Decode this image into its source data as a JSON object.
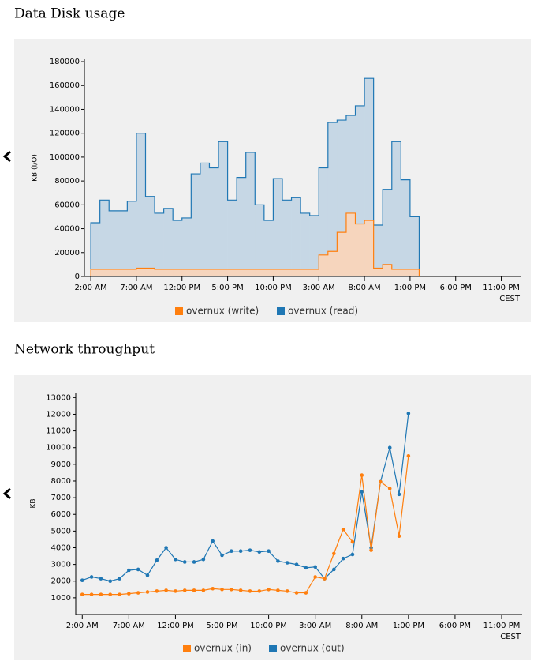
{
  "chart_data": [
    {
      "type": "step-area",
      "title": "Data Disk usage",
      "ylabel": "KB (I/O)",
      "xlabel": "CEST",
      "x": [
        0,
        1,
        2,
        3,
        4,
        5,
        6,
        7,
        8,
        9,
        10,
        11,
        12,
        13,
        14,
        15,
        16,
        17,
        18,
        19,
        20,
        21,
        22,
        23,
        24,
        25,
        26,
        27,
        28,
        29,
        30,
        31,
        32,
        33,
        34,
        35
      ],
      "xlim": [
        -0.7,
        47.2
      ],
      "xticks": [
        {
          "value": 0,
          "label": "2:00 AM"
        },
        {
          "value": 5,
          "label": "7:00 AM"
        },
        {
          "value": 10,
          "label": "12:00 PM"
        },
        {
          "value": 15,
          "label": "5:00 PM"
        },
        {
          "value": 20,
          "label": "10:00 PM"
        },
        {
          "value": 25,
          "label": "3:00 AM"
        },
        {
          "value": 30,
          "label": "8:00 AM"
        },
        {
          "value": 35,
          "label": "1:00 PM"
        },
        {
          "value": 40,
          "label": "6:00 PM"
        },
        {
          "value": 45,
          "label": "11:00 PM"
        }
      ],
      "ylim": [
        0,
        182000
      ],
      "yticks": [
        0,
        20000,
        40000,
        60000,
        80000,
        100000,
        120000,
        140000,
        160000,
        180000
      ],
      "series": [
        {
          "name": "overnux (read)",
          "color": "#1f77b4",
          "fill": "#c6d7e5",
          "values": [
            45000,
            64000,
            55000,
            55000,
            63000,
            120000,
            67000,
            53000,
            57000,
            47000,
            49000,
            86000,
            95000,
            91000,
            113000,
            64000,
            83000,
            104000,
            60000,
            47000,
            82000,
            64000,
            66000,
            53000,
            51000,
            91000,
            129000,
            131000,
            135000,
            143000,
            166000,
            43000,
            73000,
            113000,
            81000,
            50000
          ]
        },
        {
          "name": "overnux (write)",
          "color": "#ff7f0e",
          "fill": "#f6d5bd",
          "values": [
            6000,
            6000,
            6000,
            6000,
            6000,
            7000,
            7000,
            6000,
            6000,
            6000,
            6000,
            6000,
            6000,
            6000,
            6000,
            6000,
            6000,
            6000,
            6000,
            6000,
            6000,
            6000,
            6000,
            6000,
            6000,
            18000,
            21000,
            37000,
            53000,
            44000,
            47000,
            7000,
            10000,
            6000,
            6000,
            6000
          ]
        }
      ],
      "legend_order": [
        "overnux (write)",
        "overnux (read)"
      ]
    },
    {
      "type": "line",
      "title": "Network throughput",
      "ylabel": "KB",
      "xlabel": "CEST",
      "x": [
        0,
        1,
        2,
        3,
        4,
        5,
        6,
        7,
        8,
        9,
        10,
        11,
        12,
        13,
        14,
        15,
        16,
        17,
        18,
        19,
        20,
        21,
        22,
        23,
        24,
        25,
        26,
        27,
        28,
        29,
        30,
        31,
        32,
        33,
        34,
        35
      ],
      "xlim": [
        -0.7,
        47.2
      ],
      "xticks": [
        {
          "value": 0,
          "label": "2:00 AM"
        },
        {
          "value": 5,
          "label": "7:00 AM"
        },
        {
          "value": 10,
          "label": "12:00 PM"
        },
        {
          "value": 15,
          "label": "5:00 PM"
        },
        {
          "value": 20,
          "label": "10:00 PM"
        },
        {
          "value": 25,
          "label": "3:00 AM"
        },
        {
          "value": 30,
          "label": "8:00 AM"
        },
        {
          "value": 35,
          "label": "1:00 PM"
        },
        {
          "value": 40,
          "label": "6:00 PM"
        },
        {
          "value": 45,
          "label": "11:00 PM"
        }
      ],
      "ylim": [
        0,
        13300
      ],
      "yticks": [
        1000,
        2000,
        3000,
        4000,
        5000,
        6000,
        7000,
        8000,
        9000,
        10000,
        11000,
        12000,
        13000
      ],
      "series": [
        {
          "name": "overnux (out)",
          "color": "#1f77b4",
          "values": [
            2050,
            2250,
            2150,
            2000,
            2150,
            2650,
            2700,
            2350,
            3250,
            4000,
            3300,
            3150,
            3150,
            3300,
            4400,
            3550,
            3800,
            3800,
            3850,
            3750,
            3800,
            3200,
            3100,
            3000,
            2800,
            2850,
            2150,
            2700,
            3350,
            3600,
            7350,
            4000,
            7950,
            10000,
            7200,
            12050
          ]
        },
        {
          "name": "overnux (in)",
          "color": "#ff7f0e",
          "values": [
            1200,
            1200,
            1200,
            1200,
            1200,
            1250,
            1300,
            1350,
            1400,
            1450,
            1400,
            1450,
            1450,
            1450,
            1550,
            1500,
            1500,
            1450,
            1400,
            1400,
            1500,
            1450,
            1400,
            1300,
            1300,
            2250,
            2150,
            3650,
            5100,
            4350,
            8350,
            3850,
            7950,
            7550,
            4700,
            9500
          ]
        }
      ],
      "legend_order": [
        "overnux (in)",
        "overnux (out)"
      ]
    }
  ]
}
